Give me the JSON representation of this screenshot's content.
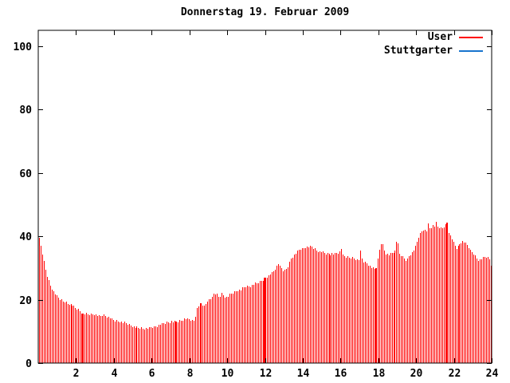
{
  "title": "Donnerstag 19. Februar 2009",
  "colors": {
    "user": "#ff0000",
    "stuttgarter": "#1874cd",
    "axis": "#000000",
    "background": "#ffffff",
    "text": "#000000"
  },
  "legend": {
    "items": [
      {
        "label": "User",
        "color_key": "user"
      },
      {
        "label": "Stuttgarter",
        "color_key": "stuttgarter"
      }
    ]
  },
  "chart_data": {
    "type": "bar",
    "style": "impulses",
    "title": "Donnerstag 19. Februar 2009",
    "xlabel": "",
    "ylabel": "",
    "x_unit": "hour of day",
    "xlim": [
      0,
      24
    ],
    "ylim": [
      0,
      105
    ],
    "x_ticks": [
      2,
      4,
      6,
      8,
      10,
      12,
      14,
      16,
      18,
      20,
      22,
      24
    ],
    "y_ticks": [
      0,
      20,
      40,
      60,
      80,
      100
    ],
    "grid": false,
    "legend_position": "top-right-inside",
    "bar_interval_minutes": 5,
    "merged_bar_hours": [
      2.35,
      7.27,
      12.0,
      17.9,
      21.62
    ],
    "series": [
      {
        "name": "User",
        "color_key": "user",
        "envelope_points": [
          [
            0.04,
            40
          ],
          [
            0.12,
            37
          ],
          [
            0.2,
            34.6
          ],
          [
            0.3,
            31.6
          ],
          [
            0.4,
            28.6
          ],
          [
            0.5,
            26.5
          ],
          [
            0.62,
            24.6
          ],
          [
            0.75,
            23
          ],
          [
            0.9,
            21.6
          ],
          [
            1.0,
            20.8
          ],
          [
            1.2,
            19.8
          ],
          [
            1.5,
            19
          ],
          [
            1.8,
            18.3
          ],
          [
            2.0,
            17.3
          ],
          [
            2.2,
            16.6
          ],
          [
            2.35,
            15.6
          ],
          [
            2.6,
            15.4
          ],
          [
            3.0,
            15.4
          ],
          [
            3.2,
            14.7
          ],
          [
            3.45,
            15.2
          ],
          [
            3.65,
            14.7
          ],
          [
            3.85,
            14
          ],
          [
            4.0,
            13.4
          ],
          [
            4.3,
            13.1
          ],
          [
            4.6,
            12.6
          ],
          [
            4.8,
            12.2
          ],
          [
            5.0,
            11.4
          ],
          [
            5.3,
            11.1
          ],
          [
            5.6,
            10.9
          ],
          [
            5.9,
            11.1
          ],
          [
            6.2,
            11.5
          ],
          [
            6.5,
            12.2
          ],
          [
            6.8,
            12.9
          ],
          [
            7.0,
            13
          ],
          [
            7.3,
            13
          ],
          [
            7.5,
            13.3
          ],
          [
            7.7,
            14
          ],
          [
            7.9,
            13.8
          ],
          [
            8.1,
            13.3
          ],
          [
            8.25,
            13.5
          ],
          [
            8.35,
            16.8
          ],
          [
            8.5,
            18.4
          ],
          [
            8.65,
            18.8
          ],
          [
            8.8,
            17.8
          ],
          [
            8.95,
            19.6
          ],
          [
            9.1,
            20
          ],
          [
            9.25,
            21.8
          ],
          [
            9.45,
            21.7
          ],
          [
            9.57,
            20.6
          ],
          [
            9.7,
            21.9
          ],
          [
            9.85,
            21.1
          ],
          [
            10.0,
            20.7
          ],
          [
            10.15,
            21.8
          ],
          [
            10.3,
            22.2
          ],
          [
            10.5,
            22.8
          ],
          [
            10.75,
            23.2
          ],
          [
            10.9,
            24.1
          ],
          [
            11.2,
            24.3
          ],
          [
            11.45,
            25
          ],
          [
            11.7,
            25.5
          ],
          [
            11.9,
            26.4
          ],
          [
            12.0,
            26.9
          ],
          [
            12.2,
            27.7
          ],
          [
            12.35,
            28.3
          ],
          [
            12.5,
            29.4
          ],
          [
            12.65,
            30.8
          ],
          [
            12.75,
            31.6
          ],
          [
            12.9,
            29.6
          ],
          [
            13.0,
            28.8
          ],
          [
            13.2,
            30.5
          ],
          [
            13.4,
            33.4
          ],
          [
            13.6,
            34.5
          ],
          [
            13.8,
            35.7
          ],
          [
            14.0,
            36.3
          ],
          [
            14.2,
            36.7
          ],
          [
            14.5,
            36.6
          ],
          [
            14.7,
            35.6
          ],
          [
            15.0,
            35
          ],
          [
            15.2,
            34.6
          ],
          [
            15.5,
            34.4
          ],
          [
            15.8,
            34.6
          ],
          [
            16.0,
            35.1
          ],
          [
            16.07,
            36.6
          ],
          [
            16.15,
            33.6
          ],
          [
            16.4,
            33.3
          ],
          [
            16.7,
            33
          ],
          [
            16.95,
            32.3
          ],
          [
            17.05,
            35.4
          ],
          [
            17.15,
            32.1
          ],
          [
            17.35,
            31.5
          ],
          [
            17.55,
            30.5
          ],
          [
            17.78,
            29.4
          ],
          [
            17.9,
            30.5
          ],
          [
            18.0,
            34
          ],
          [
            18.1,
            38
          ],
          [
            18.2,
            37.4
          ],
          [
            18.35,
            34.6
          ],
          [
            18.55,
            34.3
          ],
          [
            18.75,
            34.9
          ],
          [
            18.9,
            35.2
          ],
          [
            19.0,
            40.8
          ],
          [
            19.1,
            34.6
          ],
          [
            19.25,
            33.8
          ],
          [
            19.4,
            32.7
          ],
          [
            19.5,
            32.3
          ],
          [
            19.65,
            34
          ],
          [
            19.8,
            35
          ],
          [
            19.95,
            36.5
          ],
          [
            20.1,
            39.3
          ],
          [
            20.25,
            41.2
          ],
          [
            20.4,
            42.3
          ],
          [
            20.55,
            41.6
          ],
          [
            20.62,
            43.9
          ],
          [
            20.72,
            42.3
          ],
          [
            20.85,
            43.3
          ],
          [
            20.95,
            42.9
          ],
          [
            21.02,
            45.4
          ],
          [
            21.12,
            42.9
          ],
          [
            21.3,
            42.4
          ],
          [
            21.5,
            43
          ],
          [
            21.62,
            44.6
          ],
          [
            21.72,
            41
          ],
          [
            21.85,
            39.3
          ],
          [
            22.0,
            37.4
          ],
          [
            22.15,
            36.1
          ],
          [
            22.3,
            37.6
          ],
          [
            22.45,
            38.3
          ],
          [
            22.6,
            37.9
          ],
          [
            22.75,
            37
          ],
          [
            22.9,
            35.2
          ],
          [
            23.05,
            34.4
          ],
          [
            23.2,
            33
          ],
          [
            23.35,
            32.5
          ],
          [
            23.5,
            33
          ],
          [
            23.7,
            33.5
          ],
          [
            23.85,
            33.2
          ],
          [
            23.96,
            31
          ]
        ]
      },
      {
        "name": "Stuttgarter",
        "color_key": "stuttgarter",
        "envelope_points": [],
        "note": "no visible data points in plot area"
      }
    ]
  }
}
